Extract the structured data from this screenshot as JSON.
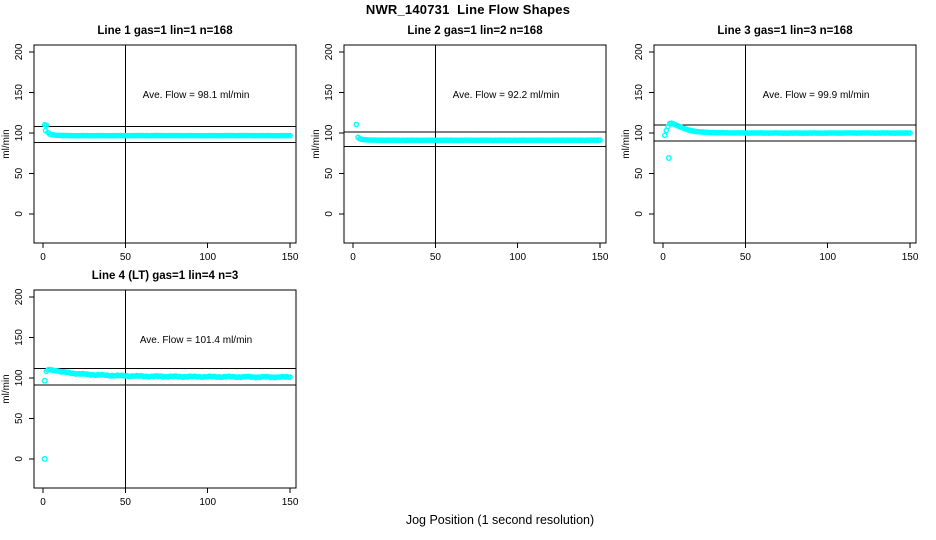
{
  "page": {
    "title": "NWR_140731  Line Flow Shapes",
    "xlabel": "Jog Position (1 second resolution)",
    "background_color": "#ffffff",
    "axis_color": "#000000",
    "point_color": "#00ffff"
  },
  "chart_data": [
    {
      "type": "scatter",
      "title": "Line 1 gas=1 lin=1 n=168",
      "annotation": "Ave. Flow =  98.1  ml/min",
      "ave_flow_ml_min": 98.1,
      "n": 168,
      "ylabel": "ml/min",
      "x_ticks": [
        0,
        50,
        100,
        150
      ],
      "y_ticks": [
        0,
        50,
        100,
        150,
        200
      ],
      "xlim": [
        -5.5,
        153.6
      ],
      "ylim": [
        -36,
        208.6
      ],
      "hlines": [
        107.9,
        88.3
      ],
      "vline_x": 50,
      "marker": "open-circle",
      "marker_color": "#00ffff",
      "jitter": 0.15,
      "keypoints": [
        [
          1,
          110
        ],
        [
          1.5,
          103
        ],
        [
          2,
          109.5
        ],
        [
          3,
          100.5
        ],
        [
          4,
          98.6
        ],
        [
          5,
          98
        ],
        [
          6,
          97.6
        ],
        [
          8,
          97.1
        ],
        [
          10,
          96.9
        ],
        [
          14,
          96.7
        ],
        [
          20,
          96.6
        ],
        [
          40,
          96.6
        ],
        [
          70,
          96.7
        ],
        [
          100,
          96.6
        ],
        [
          120,
          96.7
        ],
        [
          150,
          96.6
        ]
      ],
      "outliers": []
    },
    {
      "type": "scatter",
      "title": "Line 2 gas=1 lin=2 n=168",
      "annotation": "Ave. Flow =  92.2  ml/min",
      "ave_flow_ml_min": 92.2,
      "n": 168,
      "ylabel": "ml/min",
      "x_ticks": [
        0,
        50,
        100,
        150
      ],
      "y_ticks": [
        0,
        50,
        100,
        150,
        200
      ],
      "xlim": [
        -5.5,
        153.6
      ],
      "ylim": [
        -36,
        208.6
      ],
      "hlines": [
        101.4,
        83.0
      ],
      "vline_x": 50,
      "marker": "open-circle",
      "marker_color": "#00ffff",
      "jitter": 0.15,
      "keypoints": [
        [
          2,
          110.5
        ],
        [
          3,
          94.5
        ],
        [
          4,
          92.8
        ],
        [
          5,
          92.2
        ],
        [
          6,
          91.8
        ],
        [
          8,
          91.4
        ],
        [
          10,
          91.2
        ],
        [
          15,
          91
        ],
        [
          25,
          90.9
        ],
        [
          50,
          90.9
        ],
        [
          100,
          90.9
        ],
        [
          150,
          91
        ]
      ],
      "outliers": []
    },
    {
      "type": "scatter",
      "title": "Line 3 gas=1 lin=3 n=168",
      "annotation": "Ave. Flow =  99.9  ml/min",
      "ave_flow_ml_min": 99.9,
      "n": 168,
      "ylabel": "ml/min",
      "x_ticks": [
        0,
        50,
        100,
        150
      ],
      "y_ticks": [
        0,
        50,
        100,
        150,
        200
      ],
      "xlim": [
        -5.5,
        153.6
      ],
      "ylim": [
        -36,
        208.6
      ],
      "hlines": [
        109.9,
        89.9
      ],
      "vline_x": 50,
      "marker": "open-circle",
      "marker_color": "#00ffff",
      "jitter": 0.15,
      "keypoints": [
        [
          1,
          97
        ],
        [
          2,
          103
        ],
        [
          3,
          108
        ],
        [
          4,
          111.5
        ],
        [
          5,
          112
        ],
        [
          6,
          111.5
        ],
        [
          7,
          110.5
        ],
        [
          8,
          109.6
        ],
        [
          10,
          107.8
        ],
        [
          12,
          106
        ],
        [
          15,
          103.8
        ],
        [
          18,
          102.4
        ],
        [
          22,
          101.3
        ],
        [
          27,
          100.6
        ],
        [
          35,
          100.1
        ],
        [
          50,
          99.9
        ],
        [
          80,
          99.8
        ],
        [
          120,
          99.9
        ],
        [
          150,
          99.8
        ]
      ],
      "outliers": [
        [
          3.5,
          69
        ]
      ]
    },
    {
      "type": "scatter",
      "title": "Line 4 (LT) gas=1 lin=4 n=3",
      "annotation": "Ave. Flow =  101.4  ml/min",
      "ave_flow_ml_min": 101.4,
      "n": 3,
      "ylabel": "ml/min",
      "x_ticks": [
        0,
        50,
        100,
        150
      ],
      "y_ticks": [
        0,
        50,
        100,
        150,
        200
      ],
      "xlim": [
        -5.5,
        153.6
      ],
      "ylim": [
        -36,
        208.6
      ],
      "hlines": [
        111.5,
        91.3
      ],
      "vline_x": 50,
      "marker": "open-circle",
      "marker_color": "#00ffff",
      "jitter": 0.8,
      "keypoints": [
        [
          2,
          108
        ],
        [
          3,
          110
        ],
        [
          4,
          110.5
        ],
        [
          6,
          109.5
        ],
        [
          8,
          108.8
        ],
        [
          10,
          108
        ],
        [
          13,
          107
        ],
        [
          16,
          106.3
        ],
        [
          20,
          105.4
        ],
        [
          25,
          104.6
        ],
        [
          30,
          104
        ],
        [
          36,
          103.4
        ],
        [
          43,
          102.9
        ],
        [
          50,
          102.5
        ],
        [
          60,
          102.1
        ],
        [
          72,
          101.8
        ],
        [
          85,
          101.6
        ],
        [
          100,
          101.4
        ],
        [
          115,
          101.3
        ],
        [
          130,
          101.1
        ],
        [
          150,
          101
        ]
      ],
      "outliers": [
        [
          1,
          0
        ],
        [
          1,
          96.5
        ]
      ]
    }
  ]
}
